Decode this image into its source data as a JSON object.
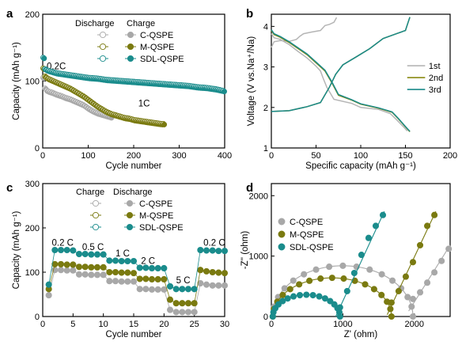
{
  "colors": {
    "c_qspe": "#a8a8a8",
    "c_qspe_light": "#cfcfcf",
    "m_qspe": "#7a7a10",
    "m_qspe_light": "#b3b34a",
    "sdl_qspe": "#1a8c8c",
    "sdl_qspe_light": "#49b5b5",
    "first": "#b5b5b5",
    "second": "#8a8a12",
    "third": "#1a8a8a"
  },
  "chart_data": [
    {
      "panel": "a",
      "type": "scatter",
      "xlabel": "Cycle number",
      "ylabel": "Capacity (mAh g⁻¹)",
      "xlim": [
        0,
        400
      ],
      "ylim": [
        0,
        200
      ],
      "xticks": [
        0,
        100,
        200,
        300,
        400
      ],
      "yticks": [
        0,
        100,
        200
      ],
      "legend_header": [
        "Discharge",
        "Charge"
      ],
      "legend_entries": [
        "C-QSPE",
        "M-QSPE",
        "SDL-QSPE"
      ],
      "annotations": [
        "0.2C",
        "1C"
      ],
      "series": [
        {
          "name": "C-QSPE",
          "color_key": "c_qspe",
          "points": [
            [
              1,
              104
            ],
            [
              2,
              100
            ],
            [
              3,
              96
            ],
            [
              5,
              88
            ],
            [
              10,
              84
            ],
            [
              20,
              82
            ],
            [
              30,
              79
            ],
            [
              40,
              77
            ],
            [
              50,
              74
            ],
            [
              60,
              72
            ],
            [
              70,
              69
            ],
            [
              80,
              66
            ],
            [
              90,
              63
            ],
            [
              100,
              58
            ],
            [
              110,
              54
            ],
            [
              120,
              51
            ],
            [
              130,
              49
            ],
            [
              140,
              47
            ],
            [
              150,
              45
            ]
          ]
        },
        {
          "name": "M-QSPE",
          "color_key": "m_qspe",
          "points": [
            [
              1,
              118
            ],
            [
              2,
              112
            ],
            [
              5,
              106
            ],
            [
              10,
              103
            ],
            [
              20,
              100
            ],
            [
              30,
              97
            ],
            [
              40,
              94
            ],
            [
              50,
              91
            ],
            [
              60,
              88
            ],
            [
              70,
              84
            ],
            [
              80,
              80
            ],
            [
              90,
              76
            ],
            [
              100,
              71
            ],
            [
              110,
              66
            ],
            [
              120,
              61
            ],
            [
              130,
              57
            ],
            [
              140,
              53
            ],
            [
              150,
              50
            ],
            [
              160,
              48
            ],
            [
              170,
              46
            ],
            [
              180,
              44
            ],
            [
              190,
              43
            ],
            [
              200,
              41
            ],
            [
              210,
              40
            ],
            [
              220,
              39
            ],
            [
              230,
              38
            ],
            [
              240,
              37
            ],
            [
              250,
              36
            ],
            [
              260,
              35
            ],
            [
              268,
              35
            ]
          ]
        },
        {
          "name": "SDL-QSPE",
          "color_key": "sdl_qspe",
          "points": [
            [
              1,
              134
            ],
            [
              2,
              124
            ],
            [
              3,
              120
            ],
            [
              5,
              117
            ],
            [
              10,
              115
            ],
            [
              20,
              113
            ],
            [
              30,
              111
            ],
            [
              40,
              110
            ],
            [
              50,
              109
            ],
            [
              60,
              108
            ],
            [
              80,
              106
            ],
            [
              100,
              104
            ],
            [
              120,
              103
            ],
            [
              140,
              101
            ],
            [
              160,
              100
            ],
            [
              180,
              99
            ],
            [
              200,
              98
            ],
            [
              220,
              97
            ],
            [
              240,
              96
            ],
            [
              260,
              95
            ],
            [
              280,
              94
            ],
            [
              300,
              93
            ],
            [
              320,
              92
            ],
            [
              340,
              90
            ],
            [
              360,
              89
            ],
            [
              380,
              87
            ],
            [
              400,
              84
            ]
          ]
        }
      ]
    },
    {
      "panel": "b",
      "type": "line",
      "xlabel": "Specific capacity (mAh g⁻¹)",
      "ylabel": "Voltage (V vs.Na⁺/Na)",
      "xlim": [
        0,
        200
      ],
      "ylim": [
        1,
        4.3
      ],
      "xticks": [
        0,
        50,
        100,
        150,
        200
      ],
      "yticks": [
        1,
        2,
        3,
        4
      ],
      "legend_entries": [
        "1st",
        "2nd",
        "3rd"
      ],
      "series": [
        {
          "name": "1st",
          "color_key": "first",
          "charge": [
            [
              0,
              3.48
            ],
            [
              3,
              3.62
            ],
            [
              10,
              3.65
            ],
            [
              20,
              3.63
            ],
            [
              28,
              3.68
            ],
            [
              32,
              3.76
            ],
            [
              36,
              3.82
            ],
            [
              45,
              3.86
            ],
            [
              55,
              3.9
            ],
            [
              60,
              4.02
            ],
            [
              65,
              4.05
            ],
            [
              70,
              4.1
            ],
            [
              73,
              4.22
            ]
          ],
          "discharge": [
            [
              0,
              3.82
            ],
            [
              3,
              3.72
            ],
            [
              10,
              3.68
            ],
            [
              20,
              3.55
            ],
            [
              30,
              3.38
            ],
            [
              40,
              3.22
            ],
            [
              50,
              3.02
            ],
            [
              55,
              2.9
            ],
            [
              58,
              2.72
            ],
            [
              62,
              2.5
            ],
            [
              70,
              2.2
            ],
            [
              90,
              2.1
            ],
            [
              100,
              2.0
            ],
            [
              120,
              1.95
            ],
            [
              133,
              1.85
            ],
            [
              140,
              1.7
            ],
            [
              148,
              1.52
            ],
            [
              152,
              1.42
            ]
          ]
        },
        {
          "name": "2nd",
          "color_key": "second",
          "charge": [
            [
              0,
              1.9
            ],
            [
              20,
              1.92
            ],
            [
              40,
              2.02
            ],
            [
              55,
              2.12
            ],
            [
              65,
              2.5
            ],
            [
              72,
              2.82
            ],
            [
              80,
              3.05
            ],
            [
              95,
              3.25
            ],
            [
              110,
              3.45
            ],
            [
              125,
              3.7
            ],
            [
              140,
              3.82
            ],
            [
              150,
              3.9
            ],
            [
              153,
              4.1
            ],
            [
              155,
              4.23
            ]
          ],
          "discharge": [
            [
              0,
              3.9
            ],
            [
              3,
              3.8
            ],
            [
              10,
              3.73
            ],
            [
              20,
              3.6
            ],
            [
              30,
              3.45
            ],
            [
              40,
              3.3
            ],
            [
              50,
              3.1
            ],
            [
              60,
              2.9
            ],
            [
              68,
              2.6
            ],
            [
              75,
              2.3
            ],
            [
              90,
              2.18
            ],
            [
              100,
              2.08
            ],
            [
              120,
              1.98
            ],
            [
              135,
              1.88
            ],
            [
              142,
              1.72
            ],
            [
              150,
              1.52
            ],
            [
              155,
              1.4
            ]
          ]
        },
        {
          "name": "3rd",
          "color_key": "third",
          "charge": [
            [
              0,
              1.9
            ],
            [
              20,
              1.92
            ],
            [
              40,
              2.02
            ],
            [
              55,
              2.12
            ],
            [
              65,
              2.5
            ],
            [
              72,
              2.82
            ],
            [
              80,
              3.05
            ],
            [
              95,
              3.25
            ],
            [
              110,
              3.45
            ],
            [
              125,
              3.7
            ],
            [
              140,
              3.82
            ],
            [
              150,
              3.9
            ],
            [
              153,
              4.1
            ],
            [
              155,
              4.23
            ]
          ],
          "discharge": [
            [
              0,
              3.92
            ],
            [
              3,
              3.82
            ],
            [
              10,
              3.75
            ],
            [
              20,
              3.62
            ],
            [
              30,
              3.47
            ],
            [
              40,
              3.32
            ],
            [
              50,
              3.12
            ],
            [
              60,
              2.92
            ],
            [
              68,
              2.62
            ],
            [
              75,
              2.32
            ],
            [
              90,
              2.19
            ],
            [
              100,
              2.09
            ],
            [
              120,
              1.99
            ],
            [
              135,
              1.89
            ],
            [
              142,
              1.73
            ],
            [
              150,
              1.53
            ],
            [
              155,
              1.41
            ]
          ]
        }
      ]
    },
    {
      "panel": "c",
      "type": "scatter",
      "xlabel": "Cycle number",
      "ylabel": "Capacity (mAh g⁻¹)",
      "xlim": [
        0,
        30
      ],
      "ylim": [
        0,
        300
      ],
      "xticks": [
        0,
        5,
        10,
        15,
        20,
        25,
        30
      ],
      "yticks": [
        0,
        100,
        200,
        300
      ],
      "legend_header": [
        "Charge",
        "Discharge"
      ],
      "legend_entries": [
        "C-QSPE",
        "M-QSPE",
        "SDL-QSPE"
      ],
      "annotations": [
        "0.2 C",
        "0.5 C",
        "1 C",
        "2 C",
        "5 C",
        "0.2 C"
      ],
      "series": [
        {
          "name": "C-QSPE",
          "color_key": "c_qspe",
          "values": [
            48,
            105,
            105,
            104,
            104,
            95,
            95,
            94,
            94,
            94,
            80,
            80,
            79,
            79,
            79,
            62,
            62,
            61,
            61,
            61,
            15,
            10,
            10,
            10,
            10,
            75,
            72,
            70,
            70,
            70
          ]
        },
        {
          "name": "M-QSPE",
          "color_key": "m_qspe",
          "values": [
            62,
            118,
            118,
            117,
            117,
            112,
            112,
            111,
            111,
            111,
            100,
            100,
            99,
            99,
            98,
            85,
            85,
            84,
            84,
            84,
            38,
            30,
            30,
            30,
            30,
            105,
            102,
            100,
            99,
            98
          ]
        },
        {
          "name": "SDL-QSPE",
          "color_key": "sdl_qspe",
          "values": [
            72,
            150,
            150,
            150,
            149,
            141,
            141,
            140,
            140,
            140,
            126,
            126,
            125,
            125,
            125,
            110,
            110,
            109,
            109,
            109,
            68,
            62,
            62,
            62,
            62,
            150,
            149,
            149,
            148,
            148
          ]
        }
      ]
    },
    {
      "panel": "d",
      "type": "scatter",
      "xlabel": "Z' (ohm)",
      "ylabel": "-Z'' (ohm)",
      "xlim": [
        0,
        2500
      ],
      "ylim": [
        0,
        2200
      ],
      "xticks": [
        0,
        1000,
        2000
      ],
      "yticks": [
        0,
        1000,
        2000
      ],
      "legend_entries": [
        "C-QSPE",
        "M-QSPE",
        "SDL-QSPE"
      ],
      "series": [
        {
          "name": "C-QSPE",
          "color_key": "c_qspe",
          "arc_center": 1000,
          "arc_radius": 980,
          "arc_height": 840,
          "tail": [
            [
              1980,
              290
            ],
            [
              2080,
              400
            ],
            [
              2180,
              560
            ],
            [
              2280,
              730
            ],
            [
              2380,
              920
            ],
            [
              2480,
              1120
            ]
          ]
        },
        {
          "name": "M-QSPE",
          "color_key": "m_qspe",
          "arc_center": 850,
          "arc_radius": 830,
          "arc_height": 640,
          "tail": [
            [
              1680,
              230
            ],
            [
              1780,
              420
            ],
            [
              1880,
              660
            ],
            [
              1980,
              900
            ],
            [
              2080,
              1180
            ],
            [
              2180,
              1500
            ],
            [
              2280,
              1680
            ]
          ]
        },
        {
          "name": "SDL-QSPE",
          "color_key": "sdl_qspe",
          "arc_center": 490,
          "arc_radius": 470,
          "arc_height": 360,
          "tail": [
            [
              960,
              150
            ],
            [
              1060,
              420
            ],
            [
              1160,
              720
            ],
            [
              1260,
              1020
            ],
            [
              1360,
              1300
            ],
            [
              1460,
              1500
            ],
            [
              1560,
              1680
            ]
          ]
        }
      ]
    }
  ]
}
